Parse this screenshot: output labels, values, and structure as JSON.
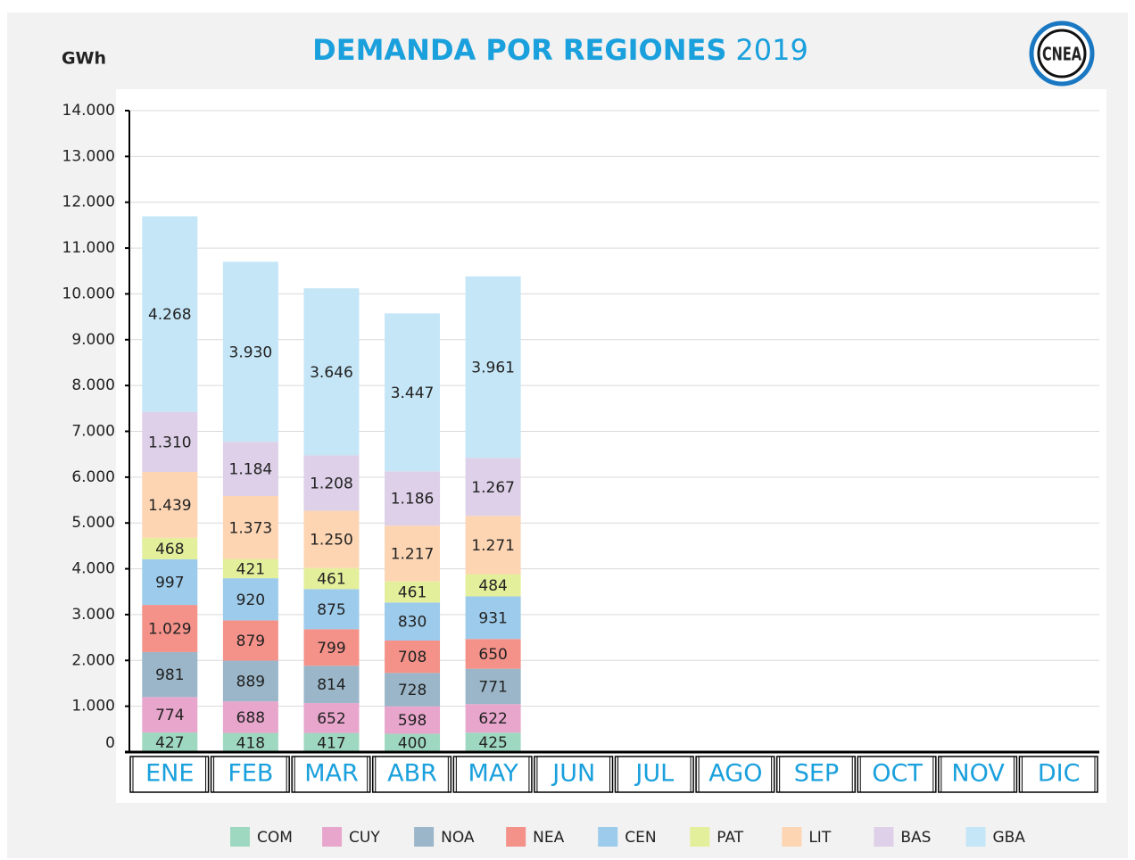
{
  "chart_data": {
    "type": "stacked_bar",
    "title": "DEMANDA POR REGIONES",
    "title_suffix": "2019",
    "logo": "CNEA",
    "y_label": "GWh",
    "categories": [
      "ENE",
      "FEB",
      "MAR",
      "ABR",
      "MAY",
      "JUN",
      "JUL",
      "AGO",
      "SEP",
      "OCT",
      "NOV",
      "DIC"
    ],
    "ylim": [
      0,
      14000
    ],
    "yticks": [
      0,
      {
        "value": 1000,
        "label": "1.000"
      },
      {
        "value": 2000,
        "label": "2.000"
      },
      {
        "value": 3000,
        "label": "3.000"
      },
      {
        "value": 4000,
        "label": "4.000"
      },
      {
        "value": 5000,
        "label": "5.000"
      },
      {
        "value": 6000,
        "label": "6.000"
      },
      {
        "value": 7000,
        "label": "7.000"
      },
      {
        "value": 8000,
        "label": "8.000"
      },
      {
        "value": 9000,
        "label": "9.000"
      },
      {
        "value": 10000,
        "label": "10.000"
      },
      {
        "value": 11000,
        "label": "11.000"
      },
      {
        "value": 12000,
        "label": "12.000"
      },
      {
        "value": 13000,
        "label": "13.000"
      },
      {
        "value": 14000,
        "label": "14.000"
      }
    ],
    "grid": true,
    "legend": "bottom",
    "series": [
      {
        "name": "COM",
        "color": "#9fd8c0",
        "values": [
          427,
          418,
          417,
          400,
          425,
          null,
          null,
          null,
          null,
          null,
          null,
          null
        ]
      },
      {
        "name": "CUY",
        "color": "#e8a6cc",
        "values": [
          774,
          688,
          652,
          598,
          622,
          null,
          null,
          null,
          null,
          null,
          null,
          null
        ]
      },
      {
        "name": "NOA",
        "color": "#9ab6c8",
        "values": [
          981,
          889,
          814,
          728,
          771,
          null,
          null,
          null,
          null,
          null,
          null,
          null
        ]
      },
      {
        "name": "NEA",
        "color": "#f4928a",
        "values": [
          1029,
          879,
          799,
          708,
          650,
          null,
          null,
          null,
          null,
          null,
          null,
          null
        ],
        "value_labels": [
          "1.029",
          "879",
          "799",
          "708",
          "650",
          null,
          null,
          null,
          null,
          null,
          null,
          null
        ]
      },
      {
        "name": "CEN",
        "color": "#9dcbeb",
        "values": [
          997,
          920,
          875,
          830,
          931,
          null,
          null,
          null,
          null,
          null,
          null,
          null
        ]
      },
      {
        "name": "PAT",
        "color": "#e3ef9a",
        "values": [
          468,
          421,
          461,
          461,
          484,
          null,
          null,
          null,
          null,
          null,
          null,
          null
        ]
      },
      {
        "name": "LIT",
        "color": "#fdd5b3",
        "values": [
          1439,
          1373,
          1250,
          1217,
          1271,
          null,
          null,
          null,
          null,
          null,
          null,
          null
        ],
        "value_labels": [
          "1.439",
          "1.373",
          "1.250",
          "1.217",
          "1.271",
          null,
          null,
          null,
          null,
          null,
          null,
          null
        ]
      },
      {
        "name": "BAS",
        "color": "#ddd0e8",
        "values": [
          1310,
          1184,
          1208,
          1186,
          1267,
          null,
          null,
          null,
          null,
          null,
          null,
          null
        ],
        "value_labels": [
          "1.310",
          "1.184",
          "1.208",
          "1.186",
          "1.267",
          null,
          null,
          null,
          null,
          null,
          null,
          null
        ]
      },
      {
        "name": "GBA",
        "color": "#c5e6f7",
        "values": [
          4268,
          3930,
          3646,
          3447,
          3961,
          null,
          null,
          null,
          null,
          null,
          null,
          null
        ],
        "value_labels": [
          "4.268",
          "3.930",
          "3.646",
          "3.447",
          "3.961",
          null,
          null,
          null,
          null,
          null,
          null,
          null
        ]
      }
    ]
  }
}
